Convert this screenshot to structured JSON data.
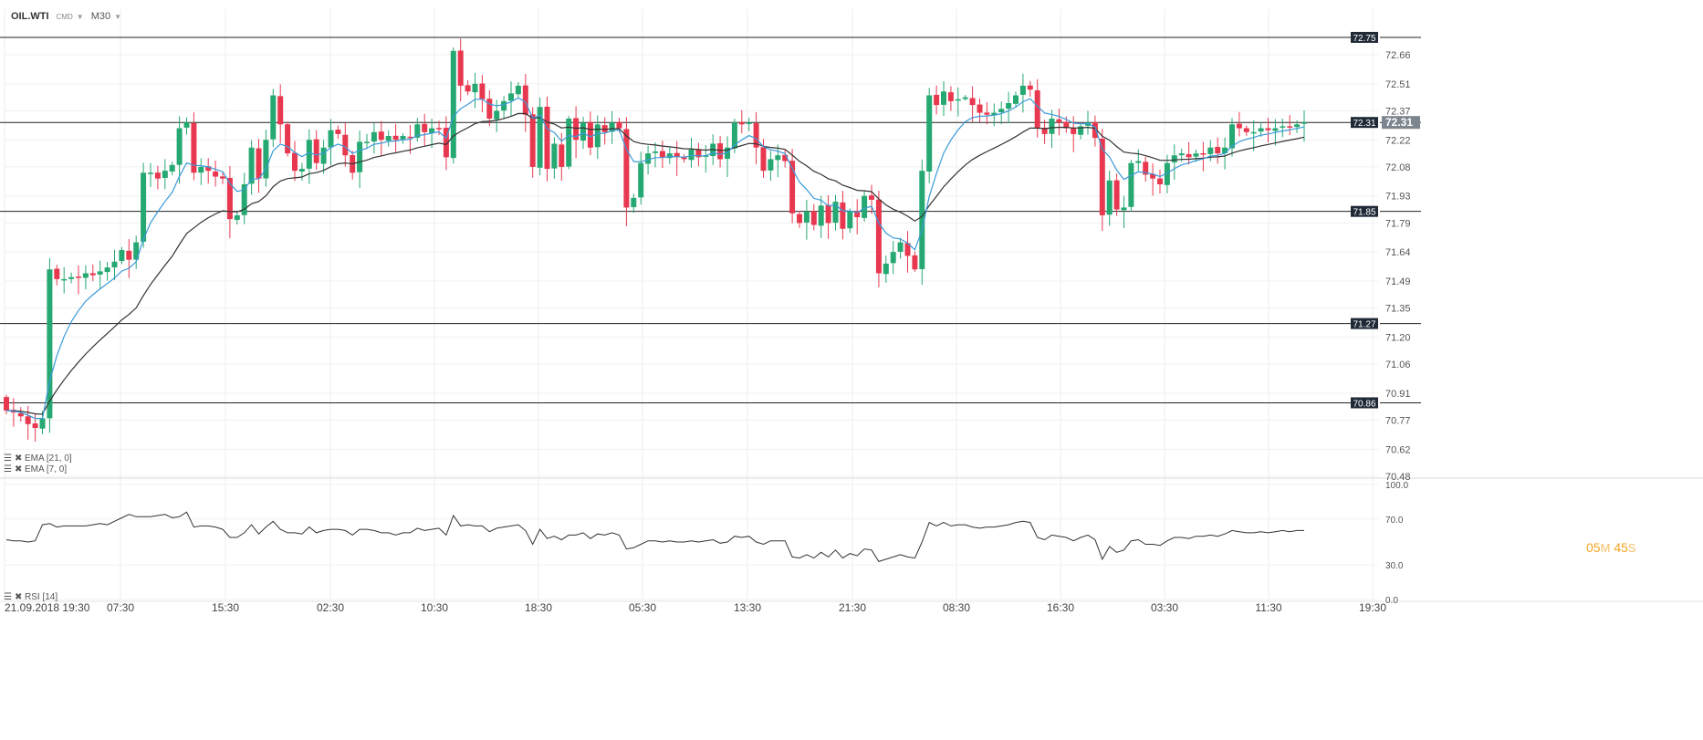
{
  "toolbar": {
    "symbol": "OIL.WTI",
    "instrument_type": "CMD",
    "timeframe": "M30"
  },
  "timer": {
    "minutes": "05",
    "minutes_unit": "M",
    "seconds": "45",
    "seconds_unit": "S"
  },
  "colors": {
    "up_candle": "#26a872",
    "down_candle": "#e8384f",
    "ema7": "#3a9ad9",
    "ema21": "#333333",
    "level_line": "#222222",
    "level_label_bg": "#1f2a36",
    "price_tag_bg": "#7d858e",
    "rsi_line": "#333333",
    "timer": "#f5a623"
  },
  "chart_data": [
    {
      "type": "candlestick",
      "symbol": "OIL.WTI",
      "timeframe": "M30",
      "x_tick_labels": [
        "21.09.2018  19:30",
        "07:30",
        "15:30",
        "02:30",
        "10:30",
        "18:30",
        "05:30",
        "13:30",
        "21:30",
        "08:30",
        "16:30",
        "03:30",
        "11:30",
        "19:30"
      ],
      "y_tick_labels": [
        "72.66",
        "72.51",
        "72.37",
        "72.22",
        "72.08",
        "71.93",
        "71.79",
        "71.64",
        "71.49",
        "71.35",
        "71.20",
        "71.06",
        "70.91",
        "70.77",
        "70.62",
        "70.48"
      ],
      "ylim": [
        70.48,
        72.83
      ],
      "grid": true,
      "horizontal_levels": [
        72.75,
        72.31,
        71.85,
        71.27,
        70.86
      ],
      "last_price": "72.31",
      "indicators": [
        "EMA  [21, 0]",
        "EMA  [7, 0]"
      ],
      "closes": [
        70.82,
        70.81,
        70.79,
        70.75,
        70.73,
        70.78,
        71.55,
        71.5,
        71.5,
        71.51,
        71.51,
        71.53,
        71.52,
        71.54,
        71.56,
        71.59,
        71.65,
        71.6,
        71.69,
        72.05,
        72.05,
        72.02,
        72.06,
        72.09,
        72.28,
        72.31,
        72.05,
        72.08,
        72.06,
        72.03,
        72.02,
        71.81,
        71.83,
        71.99,
        72.18,
        72.02,
        72.22,
        72.45,
        72.3,
        72.15,
        72.06,
        72.07,
        72.22,
        72.1,
        72.18,
        72.27,
        72.25,
        72.14,
        72.05,
        72.21,
        72.21,
        72.26,
        72.22,
        72.24,
        72.22,
        72.24,
        72.23,
        72.3,
        72.26,
        72.28,
        72.28,
        72.13,
        72.68,
        72.5,
        72.47,
        72.51,
        72.43,
        72.33,
        72.37,
        72.42,
        72.46,
        72.5,
        72.35,
        72.08,
        72.39,
        72.07,
        72.2,
        72.08,
        72.33,
        72.22,
        72.31,
        72.18,
        72.3,
        72.26,
        72.31,
        72.28,
        71.87,
        71.92,
        72.1,
        72.15,
        72.16,
        72.13,
        72.15,
        72.13,
        72.12,
        72.17,
        72.13,
        72.14,
        72.2,
        72.12,
        72.18,
        72.31,
        72.3,
        72.31,
        72.18,
        72.06,
        72.12,
        72.14,
        72.11,
        71.84,
        71.79,
        71.85,
        71.78,
        71.88,
        71.79,
        71.9,
        71.76,
        71.85,
        71.82,
        71.93,
        71.91,
        71.53,
        71.58,
        71.64,
        71.69,
        71.62,
        71.55,
        72.06,
        72.45,
        72.4,
        72.47,
        72.42,
        72.43,
        72.44,
        72.4,
        72.36,
        72.35,
        72.36,
        72.38,
        72.41,
        72.45,
        72.5,
        72.48,
        72.28,
        72.25,
        72.33,
        72.31,
        72.28,
        72.25,
        72.29,
        72.31,
        72.23,
        71.83,
        72.01,
        71.86,
        71.87,
        72.1,
        72.11,
        72.04,
        72.02,
        71.99,
        72.1,
        72.14,
        72.15,
        72.13,
        72.15,
        72.15,
        72.18,
        72.15,
        72.18,
        72.3,
        72.28,
        72.26,
        72.26,
        72.28,
        72.27,
        72.28,
        72.29,
        72.29,
        72.3,
        72.31
      ]
    },
    {
      "type": "line",
      "name": "RSI [14]",
      "y_tick_labels": [
        "100.0",
        "70.0",
        "30.0",
        "0.0"
      ],
      "ylim": [
        0,
        100
      ],
      "values": [
        52,
        51,
        51,
        50,
        51,
        65,
        66,
        63,
        64,
        64,
        64,
        64,
        65,
        66,
        65,
        68,
        71,
        74,
        72,
        72,
        72,
        73,
        74,
        71,
        72,
        76,
        63,
        64,
        64,
        63,
        61,
        54,
        54,
        58,
        65,
        57,
        63,
        68,
        61,
        58,
        58,
        57,
        63,
        58,
        60,
        61,
        61,
        60,
        56,
        61,
        61,
        60,
        58,
        58,
        56,
        58,
        58,
        62,
        60,
        61,
        62,
        56,
        73,
        64,
        65,
        64,
        64,
        59,
        62,
        63,
        64,
        65,
        60,
        48,
        61,
        53,
        55,
        52,
        56,
        56,
        58,
        53,
        57,
        56,
        58,
        56,
        44,
        45,
        48,
        51,
        51,
        50,
        51,
        50,
        50,
        51,
        50,
        51,
        52,
        49,
        50,
        55,
        54,
        55,
        50,
        48,
        51,
        51,
        51,
        37,
        36,
        39,
        36,
        41,
        37,
        43,
        36,
        40,
        38,
        44,
        43,
        33,
        35,
        37,
        39,
        37,
        36,
        50,
        67,
        64,
        67,
        64,
        65,
        65,
        63,
        62,
        63,
        63,
        64,
        65,
        67,
        68,
        67,
        54,
        52,
        56,
        55,
        54,
        51,
        54,
        56,
        52,
        35,
        46,
        41,
        43,
        51,
        52,
        48,
        48,
        47,
        51,
        54,
        54,
        53,
        55,
        55,
        56,
        55,
        57,
        60,
        59,
        58,
        58,
        59,
        58,
        59,
        60,
        59,
        60,
        60
      ]
    }
  ]
}
